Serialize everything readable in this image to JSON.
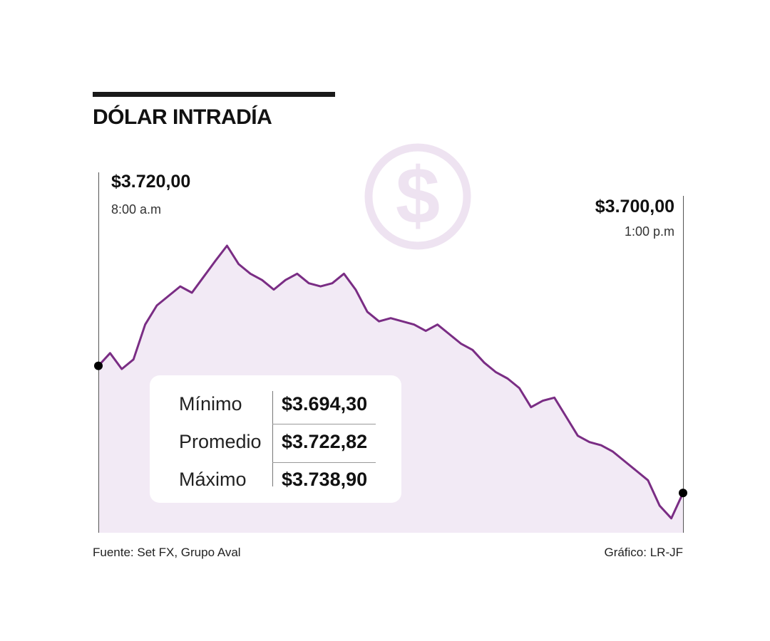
{
  "title": "DÓLAR INTRADÍA",
  "chart_data": {
    "type": "area",
    "x_unit": "time",
    "x": [
      "8:00",
      "8:06",
      "8:12",
      "8:18",
      "8:24",
      "8:30",
      "8:36",
      "8:42",
      "8:48",
      "8:54",
      "9:00",
      "9:06",
      "9:12",
      "9:18",
      "9:24",
      "9:30",
      "9:36",
      "9:42",
      "9:48",
      "9:54",
      "10:00",
      "10:06",
      "10:12",
      "10:18",
      "10:24",
      "10:30",
      "10:36",
      "10:42",
      "10:48",
      "10:54",
      "11:00",
      "11:06",
      "11:12",
      "11:18",
      "11:24",
      "11:30",
      "11:36",
      "11:42",
      "11:48",
      "11:54",
      "12:00",
      "12:06",
      "12:12",
      "12:18",
      "12:24",
      "12:30",
      "12:36",
      "12:42",
      "12:48",
      "12:54",
      "13:00"
    ],
    "values": [
      3720.0,
      3722.0,
      3719.5,
      3721.0,
      3726.5,
      3729.5,
      3731.0,
      3732.5,
      3731.5,
      3734.0,
      3736.5,
      3738.9,
      3736.0,
      3734.5,
      3733.5,
      3732.0,
      3733.5,
      3734.5,
      3733.0,
      3732.5,
      3733.0,
      3734.5,
      3732.0,
      3728.5,
      3727.0,
      3727.5,
      3727.0,
      3726.5,
      3725.5,
      3726.5,
      3725.0,
      3723.5,
      3722.5,
      3720.5,
      3719.0,
      3718.0,
      3716.5,
      3713.5,
      3714.5,
      3715.0,
      3712.0,
      3709.0,
      3708.0,
      3707.5,
      3706.5,
      3705.0,
      3703.5,
      3702.0,
      3698.0,
      3696.0,
      3700.0
    ],
    "y_range": [
      3694.3,
      3738.9
    ],
    "start": {
      "value": "$3.720,00",
      "time": "8:00 a.m"
    },
    "end": {
      "value": "$3.700,00",
      "time": "1:00 p.m"
    },
    "line_color": "#7a2d84",
    "fill_color": "#f2eaf5",
    "icon": "dollar-circle-icon",
    "icon_color": "#eee3f1"
  },
  "stats": [
    {
      "label": "Mínimo",
      "value": "$3.694,30"
    },
    {
      "label": "Promedio",
      "value": "$3.722,82"
    },
    {
      "label": "Máximo",
      "value": "$3.738,90"
    }
  ],
  "footer": {
    "source": "Fuente: Set FX, Grupo Aval",
    "credit": "Gráfico: LR-JF"
  }
}
